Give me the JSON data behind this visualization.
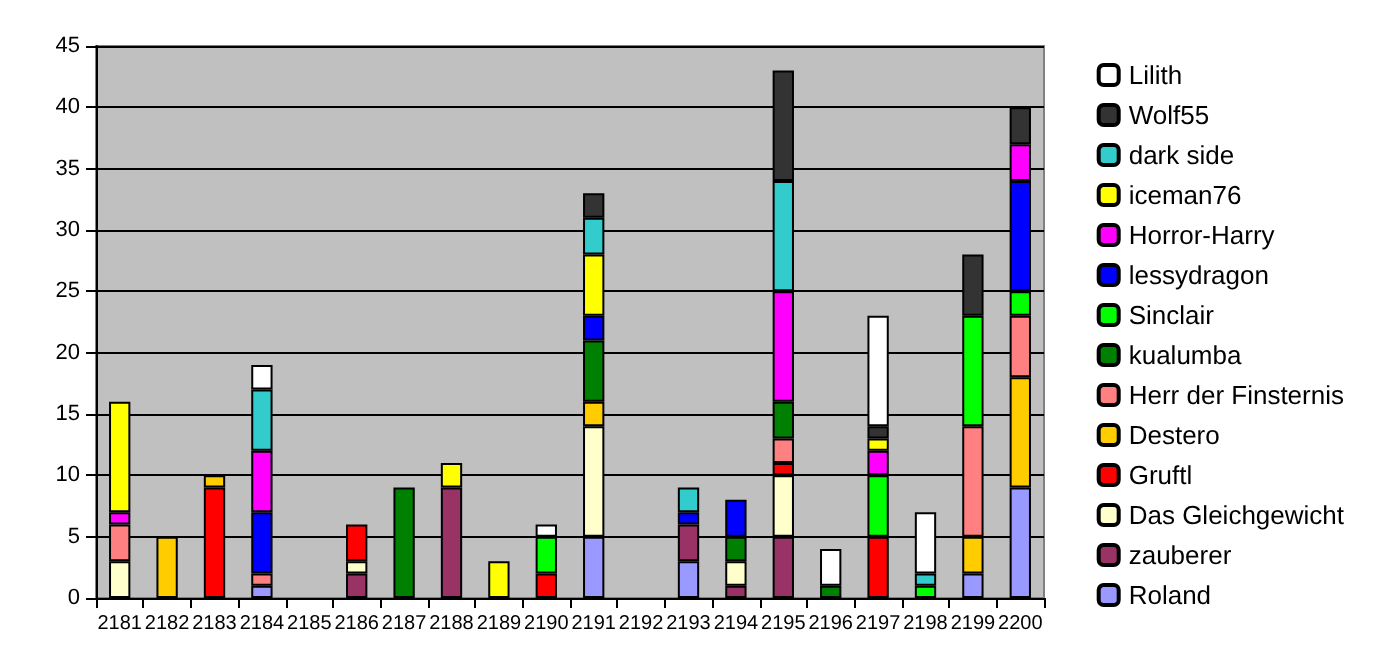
{
  "chart_data": {
    "type": "bar",
    "stacked": true,
    "categories": [
      "2181",
      "2182",
      "2183",
      "2184",
      "2185",
      "2186",
      "2187",
      "2188",
      "2189",
      "2190",
      "2191",
      "2192",
      "2193",
      "2194",
      "2195",
      "2196",
      "2197",
      "2198",
      "2199",
      "2200"
    ],
    "series": [
      {
        "name": "Roland",
        "color": "#9999ff",
        "values": [
          null,
          null,
          null,
          1,
          null,
          null,
          null,
          null,
          null,
          null,
          5,
          null,
          3,
          null,
          null,
          null,
          null,
          null,
          2,
          9
        ]
      },
      {
        "name": "zauberer",
        "color": "#993366",
        "values": [
          null,
          null,
          null,
          null,
          null,
          2,
          null,
          9,
          null,
          null,
          null,
          null,
          3,
          1,
          5,
          null,
          null,
          null,
          null,
          null
        ]
      },
      {
        "name": "Das Gleichgewicht",
        "color": "#ffffcc",
        "values": [
          3,
          null,
          null,
          null,
          null,
          1,
          null,
          null,
          null,
          null,
          9,
          null,
          null,
          2,
          5,
          null,
          null,
          null,
          null,
          null
        ]
      },
      {
        "name": "Gruftl",
        "color": "#ff0000",
        "values": [
          null,
          null,
          9,
          null,
          null,
          3,
          null,
          null,
          null,
          2,
          null,
          null,
          null,
          null,
          1,
          null,
          5,
          null,
          null,
          null
        ]
      },
      {
        "name": "Destero",
        "color": "#ffcc00",
        "values": [
          null,
          5,
          1,
          null,
          null,
          null,
          null,
          null,
          null,
          null,
          2,
          null,
          null,
          null,
          null,
          null,
          null,
          null,
          3,
          9
        ]
      },
      {
        "name": "Herr der Finsternis",
        "color": "#ff8080",
        "values": [
          3,
          null,
          null,
          1,
          null,
          null,
          null,
          null,
          null,
          null,
          null,
          null,
          null,
          null,
          2,
          null,
          null,
          null,
          9,
          5
        ]
      },
      {
        "name": "kualumba",
        "color": "#008000",
        "values": [
          null,
          null,
          null,
          null,
          null,
          null,
          9,
          null,
          null,
          null,
          5,
          null,
          null,
          2,
          3,
          1,
          null,
          null,
          null,
          null
        ]
      },
      {
        "name": "Sinclair",
        "color": "#00ff00",
        "values": [
          null,
          null,
          null,
          null,
          null,
          null,
          null,
          null,
          null,
          3,
          null,
          null,
          null,
          null,
          null,
          null,
          5,
          1,
          9,
          2
        ]
      },
      {
        "name": "lessydragon",
        "color": "#0000ff",
        "values": [
          null,
          null,
          null,
          5,
          null,
          null,
          null,
          null,
          null,
          null,
          2,
          null,
          1,
          3,
          null,
          null,
          null,
          null,
          null,
          9
        ]
      },
      {
        "name": "Horror-Harry",
        "color": "#ff00ff",
        "values": [
          1,
          null,
          null,
          5,
          null,
          null,
          null,
          null,
          null,
          null,
          null,
          null,
          null,
          null,
          9,
          null,
          2,
          null,
          null,
          3
        ]
      },
      {
        "name": "iceman76",
        "color": "#ffff00",
        "values": [
          9,
          null,
          null,
          null,
          null,
          null,
          null,
          2,
          3,
          null,
          5,
          null,
          null,
          null,
          null,
          null,
          1,
          null,
          null,
          null
        ]
      },
      {
        "name": "dark side",
        "color": "#33cccc",
        "values": [
          null,
          null,
          null,
          5,
          null,
          null,
          null,
          null,
          null,
          null,
          3,
          null,
          2,
          null,
          9,
          null,
          null,
          1,
          null,
          null
        ]
      },
      {
        "name": "Wolf55",
        "color": "#333333",
        "values": [
          null,
          null,
          null,
          null,
          null,
          null,
          null,
          null,
          null,
          null,
          2,
          null,
          null,
          null,
          9,
          null,
          1,
          null,
          5,
          3
        ]
      },
      {
        "name": "Lilith",
        "color": "#ffffff",
        "values": [
          null,
          null,
          null,
          2,
          null,
          null,
          null,
          null,
          null,
          1,
          null,
          null,
          null,
          null,
          null,
          3,
          9,
          5,
          null,
          null
        ]
      }
    ],
    "ylim": [
      0,
      45
    ],
    "yticks": [
      0,
      5,
      10,
      15,
      20,
      25,
      30,
      35,
      40,
      45
    ],
    "grid": "y",
    "legend": "right"
  }
}
